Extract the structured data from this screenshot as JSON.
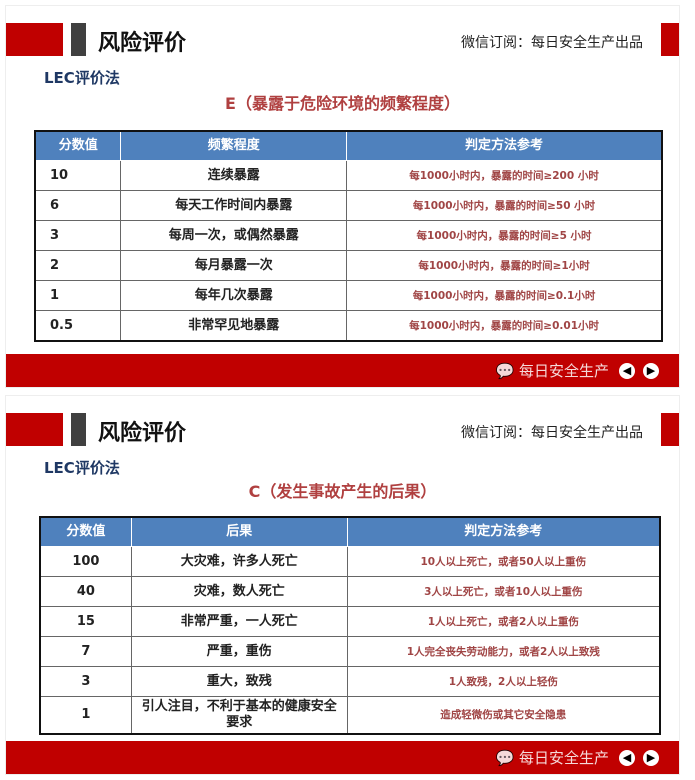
{
  "slides": [
    {
      "title": "风险评价",
      "subtitle": "微信订阅：每日安全生产出品",
      "method": "LEC评价法",
      "section": "E（暴露于危险环境的频繁程度）",
      "headers": [
        "分数值",
        "频繁程度",
        "判定方法参考"
      ],
      "rows": [
        [
          "10",
          "连续暴露",
          "每1000小时内，暴露的时间≥200 小时"
        ],
        [
          "6",
          "每天工作时间内暴露",
          "每1000小时内，暴露的时间≥50 小时"
        ],
        [
          "3",
          "每周一次，或偶然暴露",
          "每1000小时内，暴露的时间≥5 小时"
        ],
        [
          "2",
          "每月暴露一次",
          "每1000小时内，暴露的时间≥1小时"
        ],
        [
          "1",
          "每年几次暴露",
          "每1000小时内，暴露的时间≥0.1小时"
        ],
        [
          "0.5",
          "非常罕见地暴露",
          "每1000小时内，暴露的时间≥0.01小时"
        ]
      ],
      "watermark": "每日安全生产"
    },
    {
      "title": "风险评价",
      "subtitle": "微信订阅：每日安全生产出品",
      "method": "LEC评价法",
      "section": "C（发生事故产生的后果）",
      "headers": [
        "分数值",
        "后果",
        "判定方法参考"
      ],
      "rows": [
        [
          "100",
          "大灾难，许多人死亡",
          "10人以上死亡，或者50人以上重伤"
        ],
        [
          "40",
          "灾难，数人死亡",
          "3人以上死亡，或者10人以上重伤"
        ],
        [
          "15",
          "非常严重，一人死亡",
          "1人以上死亡，或者2人以上重伤"
        ],
        [
          "7",
          "严重，重伤",
          "1人完全丧失劳动能力，或者2人以上致残"
        ],
        [
          "3",
          "重大，致残",
          "1人致残，2人以上轻伤"
        ],
        [
          "1",
          "引人注目，不利于基本的健康安全要求",
          "造成轻微伤或其它安全隐患"
        ]
      ],
      "watermark": "每日安全生产"
    }
  ],
  "nav": {
    "prev_icon": "arrow-left-icon",
    "next_icon": "arrow-right-icon"
  },
  "colors": {
    "brand_red": "#c00000",
    "header_blue": "#4f81bd",
    "title_navy": "#1f3864",
    "criteria_text": "#a04545"
  }
}
